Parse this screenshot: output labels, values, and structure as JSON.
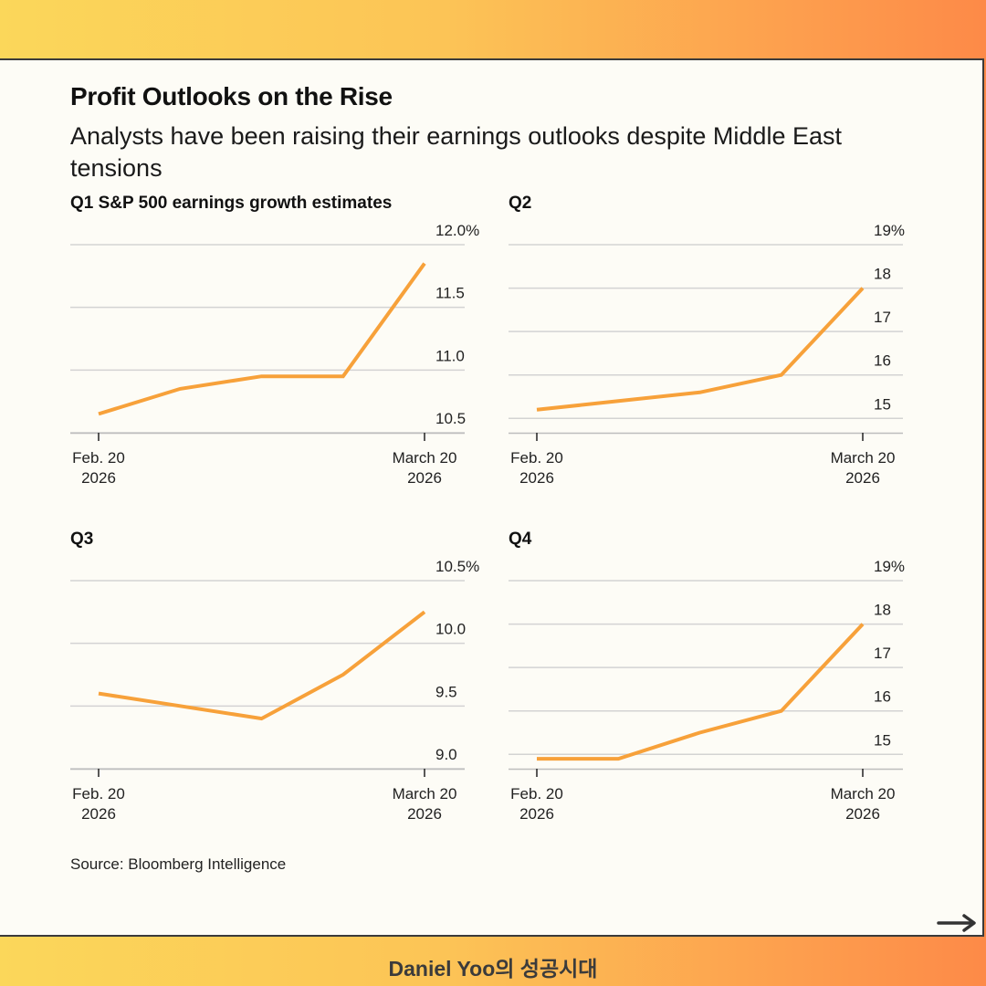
{
  "header": {
    "title": "Profit Outlooks on the Rise",
    "subtitle": "Analysts have been raising their earnings outlooks despite Middle East tensions"
  },
  "source": "Source: Bloomberg Intelligence",
  "footer": {
    "brand": "Daniel Yoo의 성공시대"
  },
  "nav": {
    "next_icon": "arrow-right-icon"
  },
  "colors": {
    "line": "#f7a13a",
    "grid": "#d3d3d3",
    "card": "#fdfcf6"
  },
  "chart_data": [
    {
      "type": "line",
      "title": "Q1 S&P 500 earnings growth estimates",
      "x": [
        0,
        1,
        2,
        3,
        4
      ],
      "xticks": [
        {
          "pos": 0,
          "label": [
            "Feb. 20",
            "2026"
          ]
        },
        {
          "pos": 4,
          "label": [
            "March 20",
            "2026"
          ]
        }
      ],
      "y": [
        10.65,
        10.85,
        10.95,
        10.95,
        11.85
      ],
      "ylim": [
        10.5,
        12.0
      ],
      "yticks": [
        {
          "v": 12.0,
          "label": "12.0%"
        },
        {
          "v": 11.5,
          "label": "11.5"
        },
        {
          "v": 11.0,
          "label": "11.0"
        },
        {
          "v": 10.5,
          "label": "10.5"
        }
      ]
    },
    {
      "type": "line",
      "title": "Q2",
      "x": [
        0,
        1,
        2,
        3,
        4
      ],
      "xticks": [
        {
          "pos": 0,
          "label": [
            "Feb. 20",
            "2026"
          ]
        },
        {
          "pos": 4,
          "label": [
            "March 20",
            "2026"
          ]
        }
      ],
      "y": [
        15.2,
        15.4,
        15.6,
        16.0,
        18.0
      ],
      "ylim": [
        14.67,
        19
      ],
      "yticks": [
        {
          "v": 19,
          "label": "19%"
        },
        {
          "v": 18,
          "label": "18"
        },
        {
          "v": 17,
          "label": "17"
        },
        {
          "v": 16,
          "label": "16"
        },
        {
          "v": 15,
          "label": "15"
        }
      ]
    },
    {
      "type": "line",
      "title": "Q3",
      "x": [
        0,
        1,
        2,
        3,
        4
      ],
      "xticks": [
        {
          "pos": 0,
          "label": [
            "Feb. 20",
            "2026"
          ]
        },
        {
          "pos": 4,
          "label": [
            "March 20",
            "2026"
          ]
        }
      ],
      "y": [
        9.6,
        9.5,
        9.4,
        9.75,
        10.25
      ],
      "ylim": [
        9.0,
        10.5
      ],
      "yticks": [
        {
          "v": 10.5,
          "label": "10.5%"
        },
        {
          "v": 10.0,
          "label": "10.0"
        },
        {
          "v": 9.5,
          "label": "9.5"
        },
        {
          "v": 9.0,
          "label": "9.0"
        }
      ]
    },
    {
      "type": "line",
      "title": "Q4",
      "x": [
        0,
        1,
        2,
        3,
        4
      ],
      "xticks": [
        {
          "pos": 0,
          "label": [
            "Feb. 20",
            "2026"
          ]
        },
        {
          "pos": 4,
          "label": [
            "March 20",
            "2026"
          ]
        }
      ],
      "y": [
        14.9,
        14.9,
        15.5,
        16.0,
        18.0
      ],
      "ylim": [
        14.67,
        19
      ],
      "yticks": [
        {
          "v": 19,
          "label": "19%"
        },
        {
          "v": 18,
          "label": "18"
        },
        {
          "v": 17,
          "label": "17"
        },
        {
          "v": 16,
          "label": "16"
        },
        {
          "v": 15,
          "label": "15"
        }
      ]
    }
  ]
}
